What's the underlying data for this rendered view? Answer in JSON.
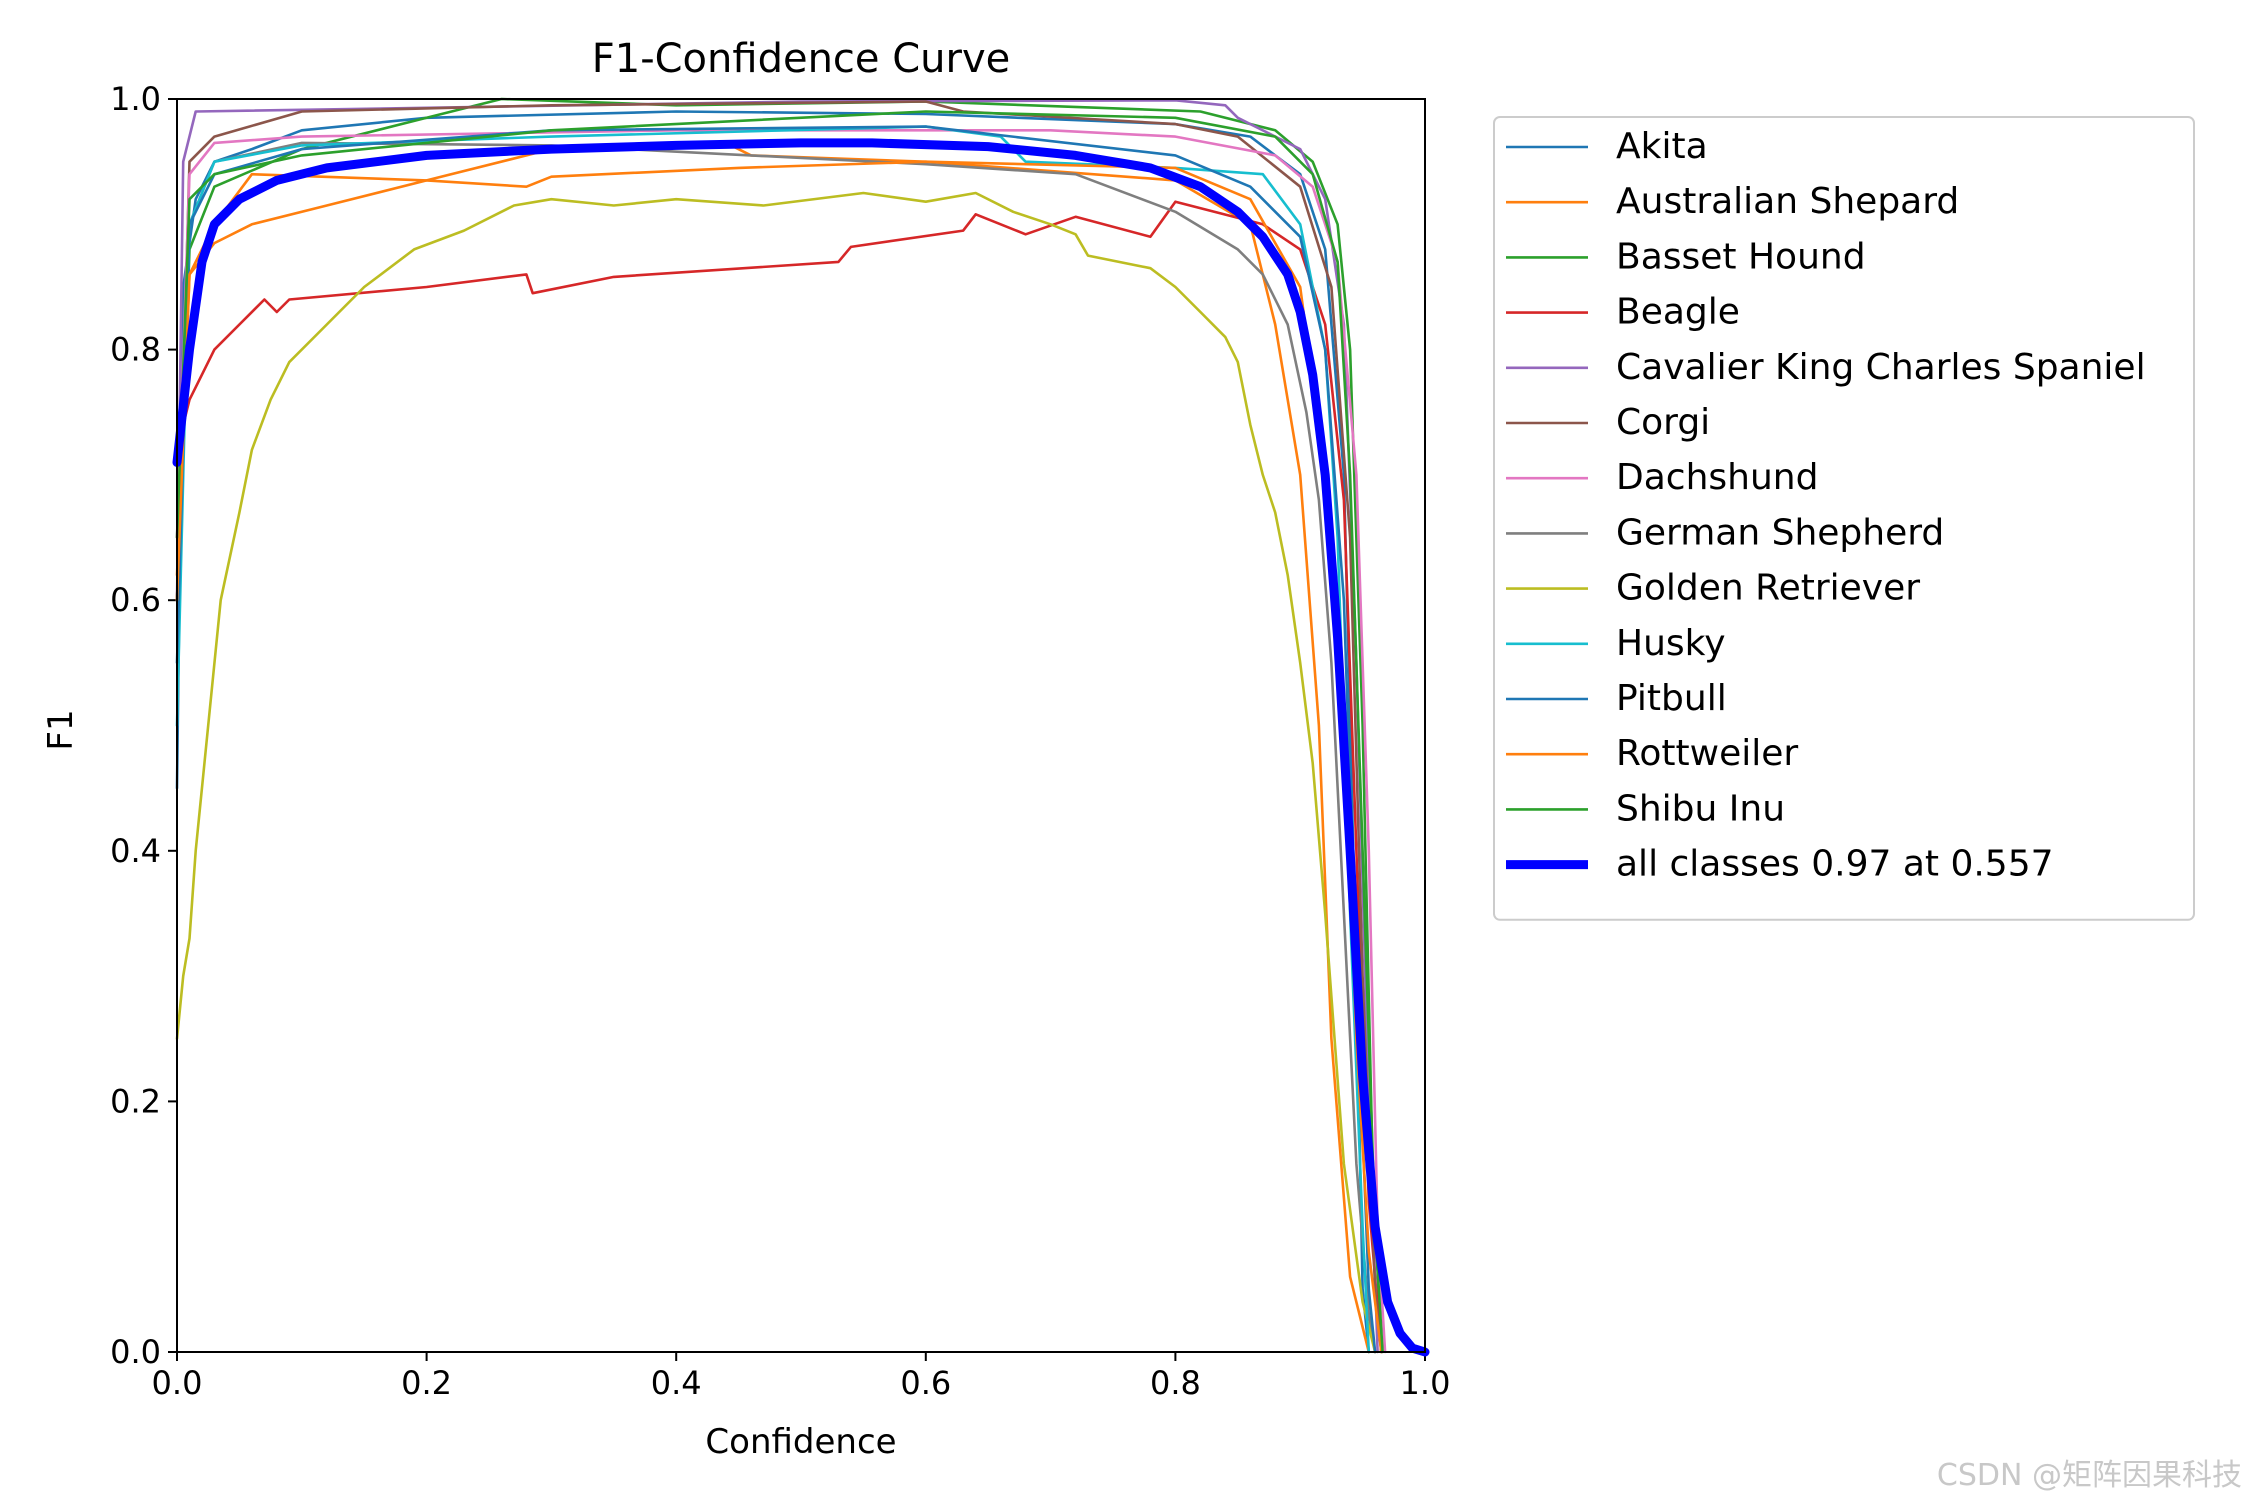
{
  "chart_data": {
    "type": "line",
    "title": "F1-Confidence Curve",
    "xlabel": "Confidence",
    "ylabel": "F1",
    "xlim": [
      0.0,
      1.0
    ],
    "ylim": [
      0.0,
      1.0
    ],
    "xticks": [
      "0.0",
      "0.2",
      "0.4",
      "0.6",
      "0.8",
      "1.0"
    ],
    "yticks": [
      "0.0",
      "0.2",
      "0.4",
      "0.6",
      "0.8",
      "1.0"
    ],
    "grid": false,
    "legend_position": "outside-right",
    "series": [
      {
        "name": "Akita",
        "color": "#1f77b4",
        "points": [
          [
            0,
            0.45
          ],
          [
            0.005,
            0.85
          ],
          [
            0.015,
            0.92
          ],
          [
            0.03,
            0.95
          ],
          [
            0.06,
            0.96
          ],
          [
            0.1,
            0.975
          ],
          [
            0.2,
            0.985
          ],
          [
            0.4,
            0.99
          ],
          [
            0.6,
            0.988
          ],
          [
            0.8,
            0.98
          ],
          [
            0.86,
            0.97
          ],
          [
            0.9,
            0.94
          ],
          [
            0.92,
            0.88
          ],
          [
            0.935,
            0.7
          ],
          [
            0.945,
            0.3
          ],
          [
            0.95,
            0.05
          ],
          [
            0.955,
            0
          ]
        ]
      },
      {
        "name": "Australian Shepard",
        "color": "#ff7f0e",
        "points": [
          [
            0,
            0.62
          ],
          [
            0.01,
            0.86
          ],
          [
            0.03,
            0.885
          ],
          [
            0.06,
            0.9
          ],
          [
            0.12,
            0.915
          ],
          [
            0.2,
            0.935
          ],
          [
            0.3,
            0.96
          ],
          [
            0.44,
            0.965
          ],
          [
            0.46,
            0.955
          ],
          [
            0.6,
            0.95
          ],
          [
            0.8,
            0.935
          ],
          [
            0.86,
            0.9
          ],
          [
            0.88,
            0.82
          ],
          [
            0.9,
            0.7
          ],
          [
            0.915,
            0.5
          ],
          [
            0.925,
            0.25
          ],
          [
            0.94,
            0.06
          ],
          [
            0.955,
            0
          ]
        ]
      },
      {
        "name": "Basset Hound",
        "color": "#2ca02c",
        "points": [
          [
            0,
            0.6
          ],
          [
            0.01,
            0.88
          ],
          [
            0.03,
            0.93
          ],
          [
            0.1,
            0.96
          ],
          [
            0.2,
            0.985
          ],
          [
            0.26,
            1.0
          ],
          [
            0.4,
            0.995
          ],
          [
            0.6,
            0.998
          ],
          [
            0.82,
            0.99
          ],
          [
            0.88,
            0.975
          ],
          [
            0.91,
            0.95
          ],
          [
            0.93,
            0.9
          ],
          [
            0.94,
            0.8
          ],
          [
            0.95,
            0.5
          ],
          [
            0.958,
            0.15
          ],
          [
            0.965,
            0
          ]
        ]
      },
      {
        "name": "Beagle",
        "color": "#d62728",
        "points": [
          [
            0,
            0.72
          ],
          [
            0.01,
            0.76
          ],
          [
            0.03,
            0.8
          ],
          [
            0.05,
            0.82
          ],
          [
            0.07,
            0.84
          ],
          [
            0.08,
            0.83
          ],
          [
            0.09,
            0.84
          ],
          [
            0.2,
            0.85
          ],
          [
            0.28,
            0.86
          ],
          [
            0.285,
            0.845
          ],
          [
            0.35,
            0.858
          ],
          [
            0.53,
            0.87
          ],
          [
            0.54,
            0.882
          ],
          [
            0.63,
            0.895
          ],
          [
            0.64,
            0.908
          ],
          [
            0.68,
            0.892
          ],
          [
            0.72,
            0.906
          ],
          [
            0.78,
            0.89
          ],
          [
            0.8,
            0.918
          ],
          [
            0.87,
            0.9
          ],
          [
            0.9,
            0.88
          ],
          [
            0.92,
            0.82
          ],
          [
            0.935,
            0.68
          ],
          [
            0.945,
            0.4
          ],
          [
            0.955,
            0.12
          ],
          [
            0.965,
            0
          ]
        ]
      },
      {
        "name": "Cavalier King Charles Spaniel",
        "color": "#9467bd",
        "points": [
          [
            0,
            0.6
          ],
          [
            0.005,
            0.95
          ],
          [
            0.015,
            0.99
          ],
          [
            0.2,
            0.993
          ],
          [
            0.5,
            0.998
          ],
          [
            0.8,
            0.999
          ],
          [
            0.84,
            0.995
          ],
          [
            0.85,
            0.985
          ],
          [
            0.9,
            0.96
          ],
          [
            0.92,
            0.92
          ],
          [
            0.935,
            0.82
          ],
          [
            0.945,
            0.55
          ],
          [
            0.955,
            0.2
          ],
          [
            0.962,
            0
          ]
        ]
      },
      {
        "name": "Corgi",
        "color": "#8c564b",
        "points": [
          [
            0,
            0.6
          ],
          [
            0.01,
            0.95
          ],
          [
            0.03,
            0.97
          ],
          [
            0.1,
            0.99
          ],
          [
            0.3,
            0.995
          ],
          [
            0.6,
            0.998
          ],
          [
            0.63,
            0.99
          ],
          [
            0.8,
            0.98
          ],
          [
            0.85,
            0.97
          ],
          [
            0.9,
            0.93
          ],
          [
            0.925,
            0.85
          ],
          [
            0.94,
            0.65
          ],
          [
            0.95,
            0.3
          ],
          [
            0.96,
            0.05
          ],
          [
            0.965,
            0
          ]
        ]
      },
      {
        "name": "Dachshund",
        "color": "#e377c2",
        "points": [
          [
            0,
            0.65
          ],
          [
            0.01,
            0.94
          ],
          [
            0.03,
            0.965
          ],
          [
            0.1,
            0.97
          ],
          [
            0.4,
            0.975
          ],
          [
            0.7,
            0.975
          ],
          [
            0.8,
            0.97
          ],
          [
            0.88,
            0.955
          ],
          [
            0.91,
            0.93
          ],
          [
            0.93,
            0.87
          ],
          [
            0.945,
            0.7
          ],
          [
            0.955,
            0.4
          ],
          [
            0.962,
            0.1
          ],
          [
            0.968,
            0
          ]
        ]
      },
      {
        "name": "German Shepherd",
        "color": "#7f7f7f",
        "points": [
          [
            0,
            0.6
          ],
          [
            0.01,
            0.9
          ],
          [
            0.03,
            0.95
          ],
          [
            0.1,
            0.965
          ],
          [
            0.3,
            0.963
          ],
          [
            0.6,
            0.948
          ],
          [
            0.72,
            0.94
          ],
          [
            0.8,
            0.91
          ],
          [
            0.85,
            0.88
          ],
          [
            0.87,
            0.86
          ],
          [
            0.89,
            0.82
          ],
          [
            0.905,
            0.75
          ],
          [
            0.915,
            0.68
          ],
          [
            0.925,
            0.55
          ],
          [
            0.935,
            0.35
          ],
          [
            0.945,
            0.15
          ],
          [
            0.955,
            0.03
          ],
          [
            0.96,
            0
          ]
        ]
      },
      {
        "name": "Golden Retriever",
        "color": "#bcbd22",
        "points": [
          [
            0,
            0.25
          ],
          [
            0.005,
            0.3
          ],
          [
            0.01,
            0.33
          ],
          [
            0.015,
            0.4
          ],
          [
            0.025,
            0.5
          ],
          [
            0.035,
            0.6
          ],
          [
            0.05,
            0.67
          ],
          [
            0.06,
            0.72
          ],
          [
            0.075,
            0.76
          ],
          [
            0.09,
            0.79
          ],
          [
            0.12,
            0.82
          ],
          [
            0.15,
            0.85
          ],
          [
            0.19,
            0.88
          ],
          [
            0.23,
            0.895
          ],
          [
            0.27,
            0.915
          ],
          [
            0.3,
            0.92
          ],
          [
            0.35,
            0.915
          ],
          [
            0.4,
            0.92
          ],
          [
            0.47,
            0.915
          ],
          [
            0.55,
            0.925
          ],
          [
            0.6,
            0.918
          ],
          [
            0.64,
            0.925
          ],
          [
            0.67,
            0.91
          ],
          [
            0.7,
            0.9
          ],
          [
            0.72,
            0.892
          ],
          [
            0.73,
            0.875
          ],
          [
            0.78,
            0.865
          ],
          [
            0.8,
            0.85
          ],
          [
            0.82,
            0.83
          ],
          [
            0.84,
            0.81
          ],
          [
            0.85,
            0.79
          ],
          [
            0.86,
            0.74
          ],
          [
            0.87,
            0.7
          ],
          [
            0.88,
            0.67
          ],
          [
            0.89,
            0.62
          ],
          [
            0.9,
            0.55
          ],
          [
            0.91,
            0.47
          ],
          [
            0.92,
            0.35
          ],
          [
            0.935,
            0.15
          ],
          [
            0.95,
            0.04
          ],
          [
            0.96,
            0
          ]
        ]
      },
      {
        "name": "Husky",
        "color": "#17becf",
        "points": [
          [
            0,
            0.5
          ],
          [
            0.01,
            0.9
          ],
          [
            0.03,
            0.95
          ],
          [
            0.1,
            0.963
          ],
          [
            0.3,
            0.97
          ],
          [
            0.6,
            0.978
          ],
          [
            0.66,
            0.97
          ],
          [
            0.68,
            0.95
          ],
          [
            0.8,
            0.945
          ],
          [
            0.87,
            0.94
          ],
          [
            0.9,
            0.9
          ],
          [
            0.92,
            0.8
          ],
          [
            0.93,
            0.65
          ],
          [
            0.94,
            0.35
          ],
          [
            0.95,
            0.1
          ],
          [
            0.955,
            0
          ]
        ]
      },
      {
        "name": "Pitbull",
        "color": "#1f77b4",
        "points": [
          [
            0,
            0.55
          ],
          [
            0.01,
            0.9
          ],
          [
            0.03,
            0.94
          ],
          [
            0.1,
            0.96
          ],
          [
            0.3,
            0.975
          ],
          [
            0.6,
            0.978
          ],
          [
            0.8,
            0.955
          ],
          [
            0.86,
            0.93
          ],
          [
            0.9,
            0.89
          ],
          [
            0.92,
            0.8
          ],
          [
            0.935,
            0.6
          ],
          [
            0.945,
            0.3
          ],
          [
            0.955,
            0.05
          ],
          [
            0.96,
            0
          ]
        ]
      },
      {
        "name": "Rottweiler",
        "color": "#ff7f0e",
        "points": [
          [
            0,
            0.6
          ],
          [
            0.01,
            0.86
          ],
          [
            0.03,
            0.9
          ],
          [
            0.06,
            0.94
          ],
          [
            0.2,
            0.935
          ],
          [
            0.28,
            0.93
          ],
          [
            0.3,
            0.938
          ],
          [
            0.45,
            0.945
          ],
          [
            0.6,
            0.95
          ],
          [
            0.8,
            0.945
          ],
          [
            0.86,
            0.92
          ],
          [
            0.9,
            0.85
          ],
          [
            0.92,
            0.7
          ],
          [
            0.935,
            0.5
          ],
          [
            0.945,
            0.25
          ],
          [
            0.955,
            0.08
          ],
          [
            0.965,
            0
          ]
        ]
      },
      {
        "name": "Shibu Inu",
        "color": "#2ca02c",
        "points": [
          [
            0,
            0.65
          ],
          [
            0.01,
            0.92
          ],
          [
            0.03,
            0.94
          ],
          [
            0.1,
            0.955
          ],
          [
            0.3,
            0.975
          ],
          [
            0.6,
            0.99
          ],
          [
            0.8,
            0.985
          ],
          [
            0.88,
            0.97
          ],
          [
            0.91,
            0.94
          ],
          [
            0.93,
            0.87
          ],
          [
            0.94,
            0.7
          ],
          [
            0.95,
            0.4
          ],
          [
            0.96,
            0.1
          ],
          [
            0.966,
            0
          ]
        ]
      },
      {
        "name": "all classes 0.97 at 0.557",
        "color": "#0000ff",
        "bold": true,
        "points": [
          [
            0,
            0.71
          ],
          [
            0.01,
            0.8
          ],
          [
            0.02,
            0.87
          ],
          [
            0.03,
            0.9
          ],
          [
            0.05,
            0.92
          ],
          [
            0.08,
            0.935
          ],
          [
            0.12,
            0.945
          ],
          [
            0.2,
            0.955
          ],
          [
            0.3,
            0.96
          ],
          [
            0.4,
            0.963
          ],
          [
            0.5,
            0.965
          ],
          [
            0.557,
            0.965
          ],
          [
            0.65,
            0.962
          ],
          [
            0.72,
            0.955
          ],
          [
            0.78,
            0.945
          ],
          [
            0.82,
            0.93
          ],
          [
            0.85,
            0.91
          ],
          [
            0.87,
            0.89
          ],
          [
            0.89,
            0.86
          ],
          [
            0.9,
            0.83
          ],
          [
            0.91,
            0.78
          ],
          [
            0.92,
            0.7
          ],
          [
            0.93,
            0.57
          ],
          [
            0.94,
            0.4
          ],
          [
            0.95,
            0.22
          ],
          [
            0.96,
            0.1
          ],
          [
            0.97,
            0.04
          ],
          [
            0.98,
            0.015
          ],
          [
            0.99,
            0.003
          ],
          [
            1.0,
            0
          ]
        ]
      }
    ]
  },
  "watermark": "CSDN @矩阵因果科技"
}
